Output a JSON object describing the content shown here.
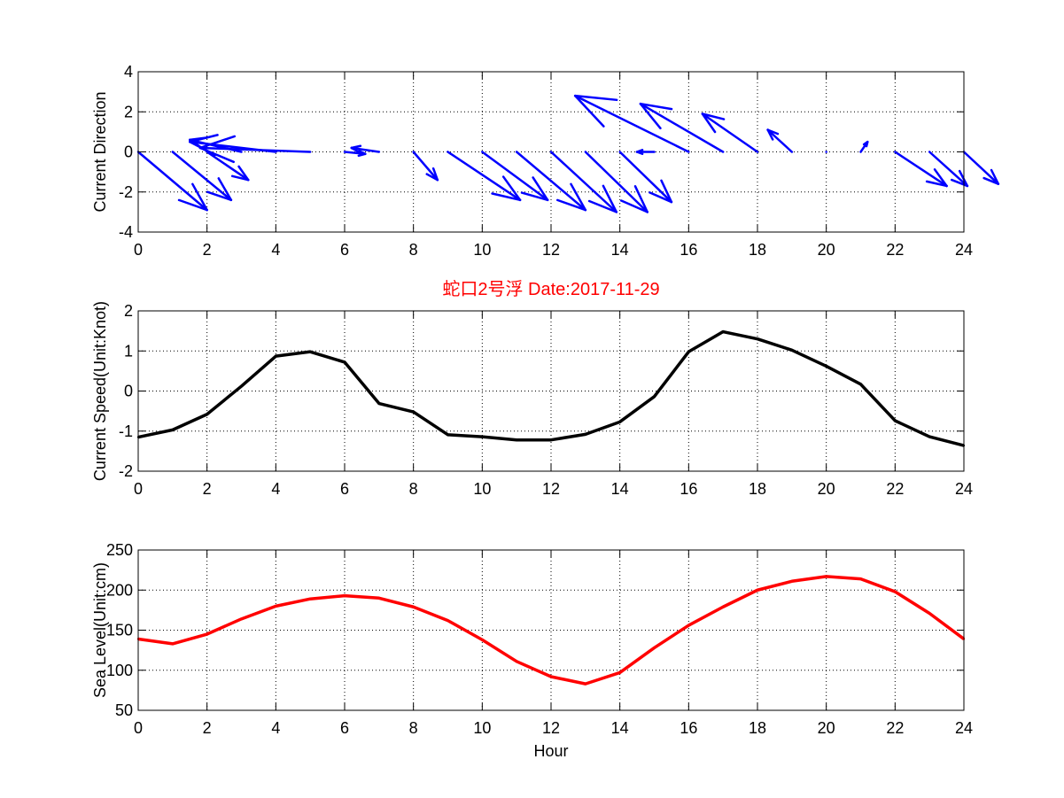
{
  "chart_data": [
    {
      "type": "quiver",
      "ylabel": "Current Direction",
      "xlabel": "",
      "xlim": [
        0,
        24
      ],
      "ylim": [
        -4,
        4
      ],
      "xticks": [
        0,
        2,
        4,
        6,
        8,
        10,
        12,
        14,
        16,
        18,
        20,
        22,
        24
      ],
      "yticks": [
        -4,
        -2,
        0,
        2,
        4
      ],
      "grid": true,
      "color": "#0000ff",
      "x": [
        0,
        1,
        2,
        3,
        4,
        5,
        6,
        7,
        8,
        9,
        10,
        11,
        12,
        13,
        14,
        15,
        16,
        17,
        18,
        19,
        20,
        21,
        22,
        23,
        24
      ],
      "u": [
        2.0,
        1.7,
        1.2,
        -1.5,
        -2.5,
        -3.2,
        0.6,
        -0.8,
        0.7,
        2.1,
        1.9,
        2.0,
        1.9,
        1.8,
        1.5,
        -0.5,
        -3.3,
        -2.4,
        -1.6,
        -0.7,
        0.0,
        0.2,
        1.5,
        1.1,
        1.0
      ],
      "v": [
        -2.9,
        -2.4,
        -1.4,
        0.6,
        0.5,
        0.2,
        -0.1,
        0.2,
        -1.4,
        -2.4,
        -2.4,
        -2.9,
        -3.0,
        -3.0,
        -2.5,
        0.0,
        2.8,
        2.4,
        1.9,
        1.1,
        0.0,
        0.5,
        -1.7,
        -1.7,
        -1.6
      ]
    },
    {
      "type": "line",
      "title": "蛇口2号浮   Date:2017-11-29",
      "ylabel": "Current Speed(Unit:Knot)",
      "xlabel": "",
      "xlim": [
        0,
        24
      ],
      "ylim": [
        -2,
        2
      ],
      "xticks": [
        0,
        2,
        4,
        6,
        8,
        10,
        12,
        14,
        16,
        18,
        20,
        22,
        24
      ],
      "yticks": [
        -2,
        -1,
        0,
        1,
        2
      ],
      "grid": true,
      "color": "#000000",
      "x": [
        0,
        1,
        2,
        3,
        4,
        5,
        6,
        7,
        8,
        9,
        10,
        11,
        12,
        13,
        14,
        15,
        16,
        17,
        18,
        19,
        20,
        21,
        22,
        23,
        24
      ],
      "y": [
        -1.15,
        -0.97,
        -0.58,
        0.12,
        0.87,
        0.98,
        0.72,
        -0.31,
        -0.52,
        -1.09,
        -1.14,
        -1.22,
        -1.22,
        -1.08,
        -0.77,
        -0.14,
        0.98,
        1.48,
        1.3,
        1.02,
        0.62,
        0.17,
        -0.74,
        -1.14,
        -1.36
      ]
    },
    {
      "type": "line",
      "ylabel": "Sea Level(Unit:cm)",
      "xlabel": "Hour",
      "xlim": [
        0,
        24
      ],
      "ylim": [
        50,
        250
      ],
      "xticks": [
        0,
        2,
        4,
        6,
        8,
        10,
        12,
        14,
        16,
        18,
        20,
        22,
        24
      ],
      "yticks": [
        50,
        100,
        150,
        200,
        250
      ],
      "grid": true,
      "color": "#ff0000",
      "x": [
        0,
        1,
        2,
        3,
        4,
        5,
        6,
        7,
        8,
        9,
        10,
        11,
        12,
        13,
        14,
        15,
        16,
        17,
        18,
        19,
        20,
        21,
        22,
        23,
        24
      ],
      "y": [
        139,
        133,
        145,
        164,
        180,
        189,
        193,
        190,
        179,
        162,
        138,
        111,
        92,
        83,
        97,
        128,
        156,
        179,
        200,
        211,
        217,
        214,
        198,
        171,
        139
      ]
    }
  ]
}
